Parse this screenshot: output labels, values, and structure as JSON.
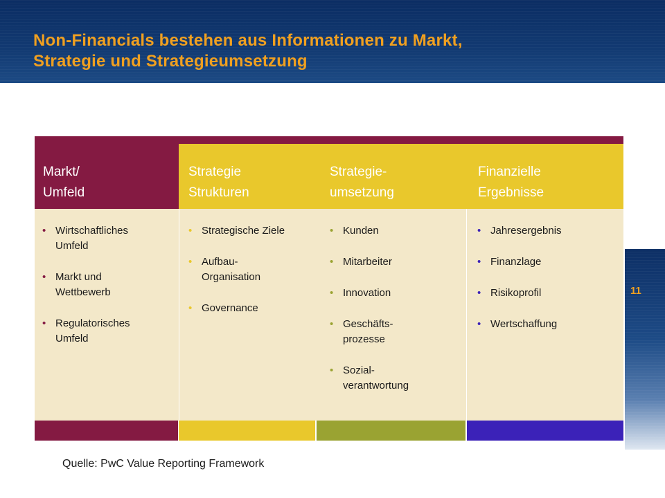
{
  "slide": {
    "title_lines": [
      "Non-Financials bestehen aus Informationen zu Markt,",
      "Strategie und Strategieumsetzung"
    ],
    "page_number": "11",
    "source": "Quelle: PwC Value Reporting Framework"
  },
  "framework": {
    "columns": [
      {
        "header": [
          "Markt/",
          "Umfeld"
        ],
        "items": [
          [
            "Wirtschaftliches",
            "Umfeld"
          ],
          [
            "Markt und",
            "Wettbewerb"
          ],
          [
            "Regulatorisches",
            "Umfeld"
          ]
        ]
      },
      {
        "header": [
          "Strategie",
          "Strukturen"
        ],
        "items": [
          [
            "Strategische Ziele"
          ],
          [
            "Aufbau-",
            "Organisation"
          ],
          [
            "Governance"
          ]
        ]
      },
      {
        "header": [
          "Strategie-",
          "umsetzung"
        ],
        "items": [
          [
            "Kunden"
          ],
          [
            "Mitarbeiter"
          ],
          [
            "Innovation"
          ],
          [
            "Geschäfts-",
            "prozesse"
          ],
          [
            "Sozial-",
            "verantwortung"
          ]
        ]
      },
      {
        "header": [
          "Finanzielle",
          "Ergebnisse"
        ],
        "items": [
          [
            "Jahresergebnis"
          ],
          [
            "Finanzlage"
          ],
          [
            "Risikoprofil"
          ],
          [
            "Wertschaffung"
          ]
        ]
      }
    ],
    "colors": {
      "maroon": "#841a42",
      "yellow": "#e9c82c",
      "olive": "#9aa332",
      "purple": "#3b22b8",
      "body": "#f3e8c9",
      "title": "#f0a020",
      "navy": "#0b2d63"
    }
  }
}
